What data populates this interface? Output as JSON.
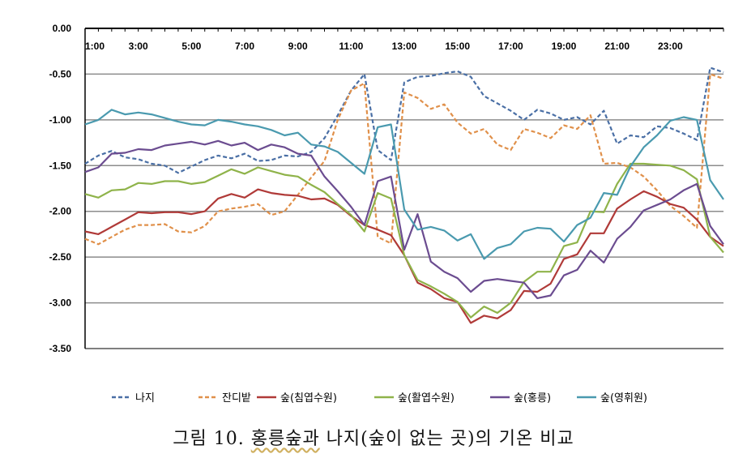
{
  "chart_data": {
    "type": "line",
    "title": "",
    "xlabel": "",
    "ylabel": "",
    "ylim": [
      -3.5,
      0.0
    ],
    "yticks": [
      "0.00",
      "-0.50",
      "-1.00",
      "-1.50",
      "-2.00",
      "-2.50",
      "-3.00",
      "-3.50"
    ],
    "xticks": [
      "1:00",
      "3:00",
      "5:00",
      "7:00",
      "9:00",
      "11:00",
      "13:00",
      "15:00",
      "17:00",
      "19:00",
      "21:00",
      "23:00"
    ],
    "x_count": 49,
    "legend_position": "bottom",
    "series": [
      {
        "name": "나지",
        "color": "#4a6fa5",
        "dash": true,
        "values": [
          -1.48,
          -1.39,
          -1.34,
          -1.41,
          -1.43,
          -1.48,
          -1.5,
          -1.58,
          -1.51,
          -1.44,
          -1.39,
          -1.42,
          -1.37,
          -1.45,
          -1.44,
          -1.39,
          -1.4,
          -1.35,
          -1.2,
          -0.95,
          -0.68,
          -0.5,
          -1.33,
          -1.44,
          -0.59,
          -0.53,
          -0.52,
          -0.49,
          -0.47,
          -0.53,
          -0.74,
          -0.82,
          -0.9,
          -1.0,
          -0.89,
          -0.93,
          -1.0,
          -0.97,
          -1.05,
          -0.9,
          -1.26,
          -1.17,
          -1.19,
          -1.07,
          -1.09,
          -1.15,
          -1.22,
          -0.43,
          -0.48
        ]
      },
      {
        "name": "잔디밭",
        "color": "#e0904a",
        "dash": true,
        "values": [
          -2.3,
          -2.36,
          -2.28,
          -2.2,
          -2.15,
          -2.15,
          -2.14,
          -2.22,
          -2.23,
          -2.16,
          -2.0,
          -1.97,
          -1.95,
          -1.92,
          -2.04,
          -2.0,
          -1.82,
          -1.63,
          -1.45,
          -1.0,
          -0.68,
          -0.6,
          -2.28,
          -2.35,
          -0.7,
          -0.76,
          -0.88,
          -0.83,
          -1.03,
          -1.15,
          -1.1,
          -1.27,
          -1.33,
          -1.1,
          -1.14,
          -1.2,
          -1.06,
          -1.1,
          -0.95,
          -1.48,
          -1.47,
          -1.52,
          -1.62,
          -1.77,
          -1.94,
          -2.05,
          -2.18,
          -0.5,
          -0.55
        ]
      },
      {
        "name": "숲(침엽수원)",
        "color": "#b03a38",
        "dash": false,
        "values": [
          -2.22,
          -2.25,
          -2.17,
          -2.09,
          -2.01,
          -2.02,
          -2.01,
          -2.01,
          -2.03,
          -2.0,
          -1.86,
          -1.81,
          -1.85,
          -1.76,
          -1.8,
          -1.82,
          -1.83,
          -1.87,
          -1.86,
          -1.93,
          -2.05,
          -2.15,
          -2.2,
          -2.26,
          -2.48,
          -2.78,
          -2.85,
          -2.95,
          -2.99,
          -3.22,
          -3.14,
          -3.17,
          -3.08,
          -2.87,
          -2.88,
          -2.79,
          -2.52,
          -2.47,
          -2.24,
          -2.24,
          -1.97,
          -1.87,
          -1.78,
          -1.84,
          -1.92,
          -1.96,
          -2.09,
          -2.28,
          -2.38
        ]
      },
      {
        "name": "숲(활엽수원)",
        "color": "#8fb34a",
        "dash": false,
        "values": [
          -1.81,
          -1.85,
          -1.77,
          -1.76,
          -1.69,
          -1.7,
          -1.67,
          -1.67,
          -1.7,
          -1.68,
          -1.61,
          -1.54,
          -1.59,
          -1.52,
          -1.56,
          -1.6,
          -1.62,
          -1.71,
          -1.79,
          -1.92,
          -2.04,
          -2.22,
          -1.8,
          -1.86,
          -2.48,
          -2.75,
          -2.82,
          -2.9,
          -2.99,
          -3.16,
          -3.04,
          -3.11,
          -3.0,
          -2.77,
          -2.66,
          -2.66,
          -2.38,
          -2.34,
          -2.0,
          -2.01,
          -1.7,
          -1.48,
          -1.48,
          -1.49,
          -1.5,
          -1.55,
          -1.65,
          -2.28,
          -2.45
        ]
      },
      {
        "name": "숲(홍릉)",
        "color": "#6b4c90",
        "dash": false,
        "values": [
          -1.57,
          -1.52,
          -1.37,
          -1.36,
          -1.32,
          -1.33,
          -1.28,
          -1.26,
          -1.24,
          -1.27,
          -1.23,
          -1.28,
          -1.25,
          -1.33,
          -1.27,
          -1.3,
          -1.37,
          -1.39,
          -1.62,
          -1.78,
          -1.95,
          -2.15,
          -1.67,
          -1.62,
          -2.42,
          -2.03,
          -2.55,
          -2.66,
          -2.73,
          -2.88,
          -2.76,
          -2.74,
          -2.76,
          -2.78,
          -2.95,
          -2.92,
          -2.7,
          -2.64,
          -2.43,
          -2.56,
          -2.3,
          -2.17,
          -1.99,
          -1.93,
          -1.87,
          -1.77,
          -1.7,
          -2.16,
          -2.36
        ]
      },
      {
        "name": "숲(영휘원)",
        "color": "#4a9aaf",
        "dash": false,
        "values": [
          -1.05,
          -1.0,
          -0.89,
          -0.94,
          -0.92,
          -0.94,
          -0.98,
          -1.02,
          -1.05,
          -1.06,
          -1.0,
          -1.02,
          -1.05,
          -1.07,
          -1.11,
          -1.17,
          -1.14,
          -1.27,
          -1.29,
          -1.35,
          -1.47,
          -1.59,
          -1.08,
          -1.05,
          -1.98,
          -2.2,
          -2.17,
          -2.21,
          -2.32,
          -2.25,
          -2.52,
          -2.4,
          -2.36,
          -2.22,
          -2.18,
          -2.19,
          -2.33,
          -2.15,
          -2.07,
          -1.8,
          -1.82,
          -1.51,
          -1.3,
          -1.17,
          -1.01,
          -0.97,
          -1.0,
          -1.66,
          -1.87
        ]
      }
    ]
  },
  "caption": {
    "prefix": "그림 10. ",
    "underlined": "홍릉숲과",
    "suffix": " 나지(숲이 없는 곳)의 기온 비교"
  }
}
